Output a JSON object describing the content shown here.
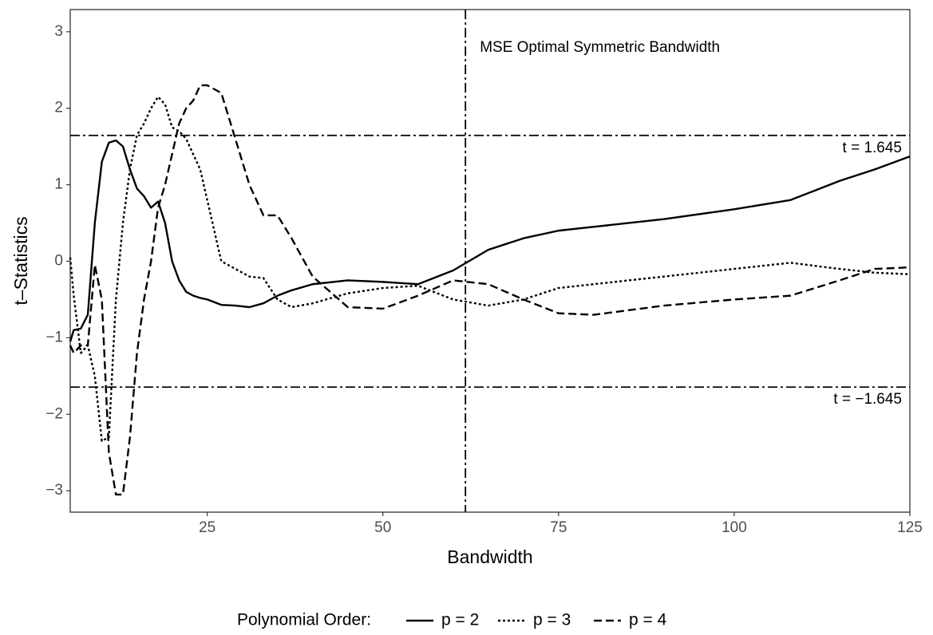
{
  "chart_data": {
    "type": "line",
    "xlabel": "Bandwidth",
    "ylabel": "t–Statistics",
    "legend_title": "Polynomial Order:",
    "legend_position": "bottom",
    "x": [
      5.5,
      6,
      7,
      8,
      9,
      10,
      11,
      12,
      13,
      14,
      15,
      16,
      17,
      18,
      19,
      20,
      21,
      22,
      23,
      24,
      25,
      27,
      29,
      31,
      33,
      35,
      37,
      40,
      45,
      50,
      55,
      60,
      65,
      70,
      75,
      80,
      90,
      100,
      108,
      115,
      120,
      125
    ],
    "series": [
      {
        "name": "p = 2",
        "color": "#000000",
        "linestyle": "solid",
        "values": [
          -1.05,
          -0.9,
          -0.88,
          -0.7,
          0.5,
          1.3,
          1.55,
          1.58,
          1.5,
          1.2,
          0.95,
          0.85,
          0.7,
          0.78,
          0.5,
          0.0,
          -0.25,
          -0.4,
          -0.45,
          -0.48,
          -0.5,
          -0.57,
          -0.58,
          -0.6,
          -0.55,
          -0.45,
          -0.38,
          -0.3,
          -0.25,
          -0.27,
          -0.3,
          -0.12,
          0.15,
          0.3,
          0.4,
          0.45,
          0.55,
          0.68,
          0.8,
          1.05,
          1.2,
          1.37
        ]
      },
      {
        "name": "p = 3",
        "color": "#000000",
        "linestyle": "dotted",
        "values": [
          0.05,
          -0.45,
          -1.2,
          -1.1,
          -1.5,
          -2.35,
          -2.3,
          -0.5,
          0.5,
          1.2,
          1.65,
          1.8,
          2.0,
          2.15,
          2.05,
          1.75,
          1.7,
          1.6,
          1.4,
          1.2,
          0.8,
          0.0,
          -0.1,
          -0.2,
          -0.22,
          -0.5,
          -0.6,
          -0.55,
          -0.42,
          -0.35,
          -0.32,
          -0.5,
          -0.58,
          -0.5,
          -0.35,
          -0.3,
          -0.2,
          -0.1,
          -0.02,
          -0.1,
          -0.15,
          -0.17
        ]
      },
      {
        "name": "p = 4",
        "color": "#000000",
        "linestyle": "dashed",
        "values": [
          -1.1,
          -1.2,
          -1.1,
          -1.1,
          -0.05,
          -0.5,
          -2.5,
          -3.05,
          -3.05,
          -2.3,
          -1.2,
          -0.5,
          0.0,
          0.7,
          1.0,
          1.4,
          1.8,
          2.0,
          2.1,
          2.3,
          2.3,
          2.2,
          1.6,
          1.0,
          0.6,
          0.6,
          0.3,
          -0.2,
          -0.6,
          -0.62,
          -0.45,
          -0.25,
          -0.3,
          -0.5,
          -0.68,
          -0.7,
          -0.58,
          -0.5,
          -0.45,
          -0.25,
          -0.1,
          -0.08
        ]
      }
    ],
    "hlines": [
      {
        "value": 1.645,
        "label": "t = 1.645"
      },
      {
        "value": -1.645,
        "label": "t = −1.645"
      }
    ],
    "vline": {
      "value": 61.75,
      "label": "MSE Optimal Symmetric Bandwidth"
    },
    "xlim": [
      5.5,
      125
    ],
    "ylim": [
      -3.28,
      3.29
    ],
    "xticks": [
      25,
      50,
      75,
      100,
      125
    ],
    "yticks": [
      {
        "value": -3,
        "label": "−3"
      },
      {
        "value": -2,
        "label": "−2"
      },
      {
        "value": -1,
        "label": "−1"
      },
      0,
      1,
      2,
      3
    ],
    "grid": false
  }
}
